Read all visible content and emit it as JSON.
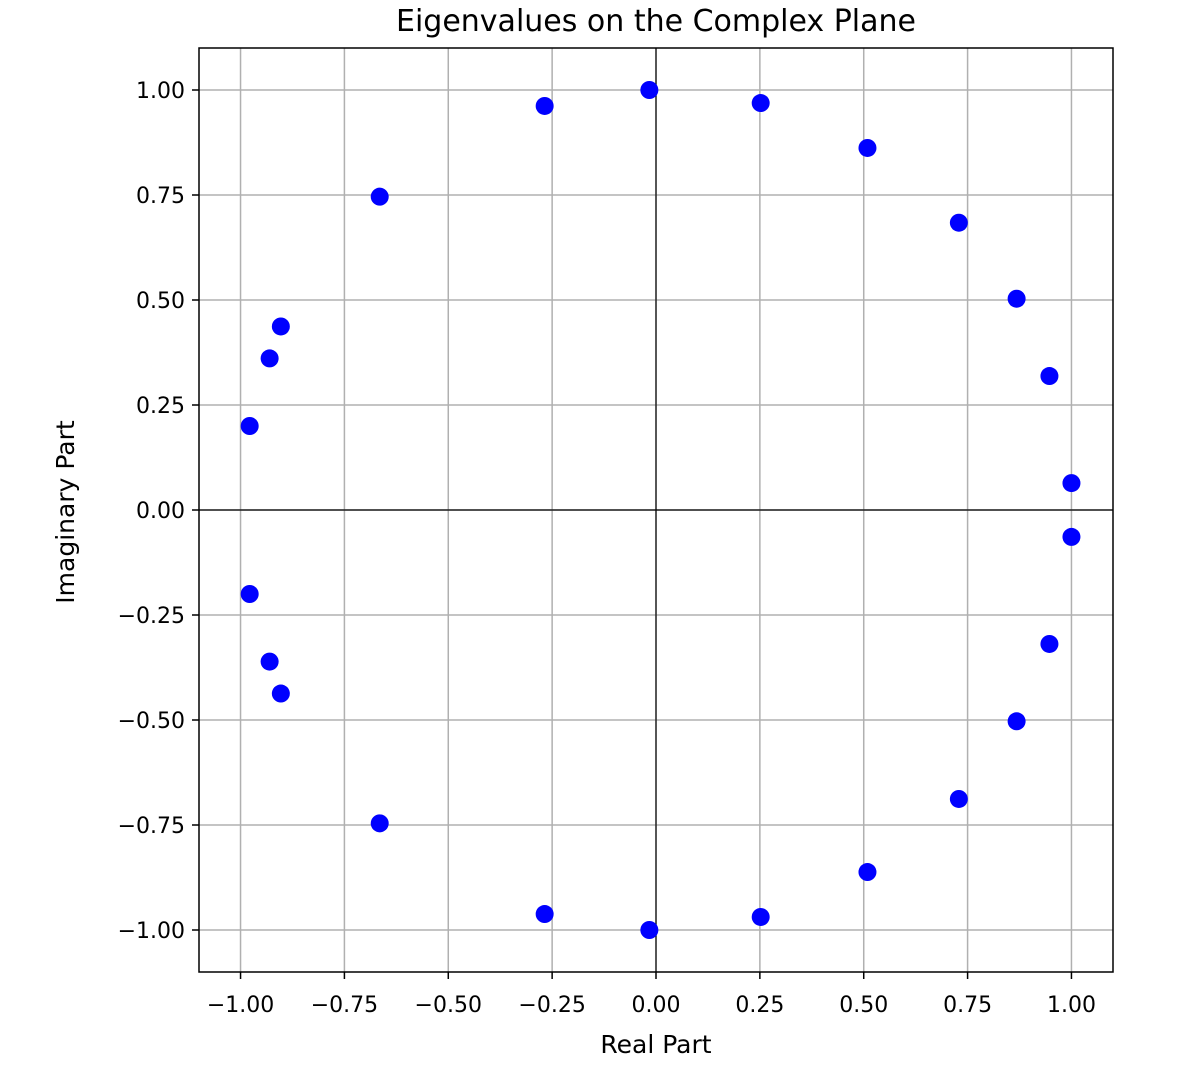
{
  "chart_data": {
    "type": "scatter",
    "title": "Eigenvalues on the Complex Plane",
    "xlabel": "Real Part",
    "ylabel": "Imaginary Part",
    "xlim": [
      -1.1,
      1.1
    ],
    "ylim": [
      -1.1,
      1.1
    ],
    "xticks": [
      -1.0,
      -0.75,
      -0.5,
      -0.25,
      0.0,
      0.25,
      0.5,
      0.75,
      1.0
    ],
    "yticks": [
      -1.0,
      -0.75,
      -0.5,
      -0.25,
      0.0,
      0.25,
      0.5,
      0.75,
      1.0
    ],
    "xtick_labels": [
      "−1.00",
      "−0.75",
      "−0.50",
      "−0.25",
      "0.00",
      "0.25",
      "0.50",
      "0.75",
      "1.00"
    ],
    "ytick_labels": [
      "−1.00",
      "−0.75",
      "−0.50",
      "−0.25",
      "0.00",
      "0.25",
      "0.50",
      "0.75",
      "1.00"
    ],
    "grid": true,
    "zero_lines": true,
    "marker_color": "#0000ff",
    "points": [
      {
        "x": 1.0,
        "y": 0.064
      },
      {
        "x": 1.0,
        "y": -0.064
      },
      {
        "x": 0.947,
        "y": 0.319
      },
      {
        "x": 0.947,
        "y": -0.319
      },
      {
        "x": 0.868,
        "y": 0.503
      },
      {
        "x": 0.868,
        "y": -0.503
      },
      {
        "x": 0.729,
        "y": 0.684
      },
      {
        "x": 0.729,
        "y": -0.688
      },
      {
        "x": 0.509,
        "y": 0.862
      },
      {
        "x": 0.509,
        "y": -0.862
      },
      {
        "x": 0.252,
        "y": 0.969
      },
      {
        "x": 0.252,
        "y": -0.969
      },
      {
        "x": -0.016,
        "y": 1.0
      },
      {
        "x": -0.016,
        "y": -1.0
      },
      {
        "x": -0.268,
        "y": 0.962
      },
      {
        "x": -0.268,
        "y": -0.962
      },
      {
        "x": -0.665,
        "y": 0.746
      },
      {
        "x": -0.665,
        "y": -0.746
      },
      {
        "x": -0.903,
        "y": 0.437
      },
      {
        "x": -0.903,
        "y": -0.437
      },
      {
        "x": -0.93,
        "y": 0.361
      },
      {
        "x": -0.93,
        "y": -0.361
      },
      {
        "x": -0.978,
        "y": 0.2
      },
      {
        "x": -0.978,
        "y": -0.2
      }
    ]
  }
}
